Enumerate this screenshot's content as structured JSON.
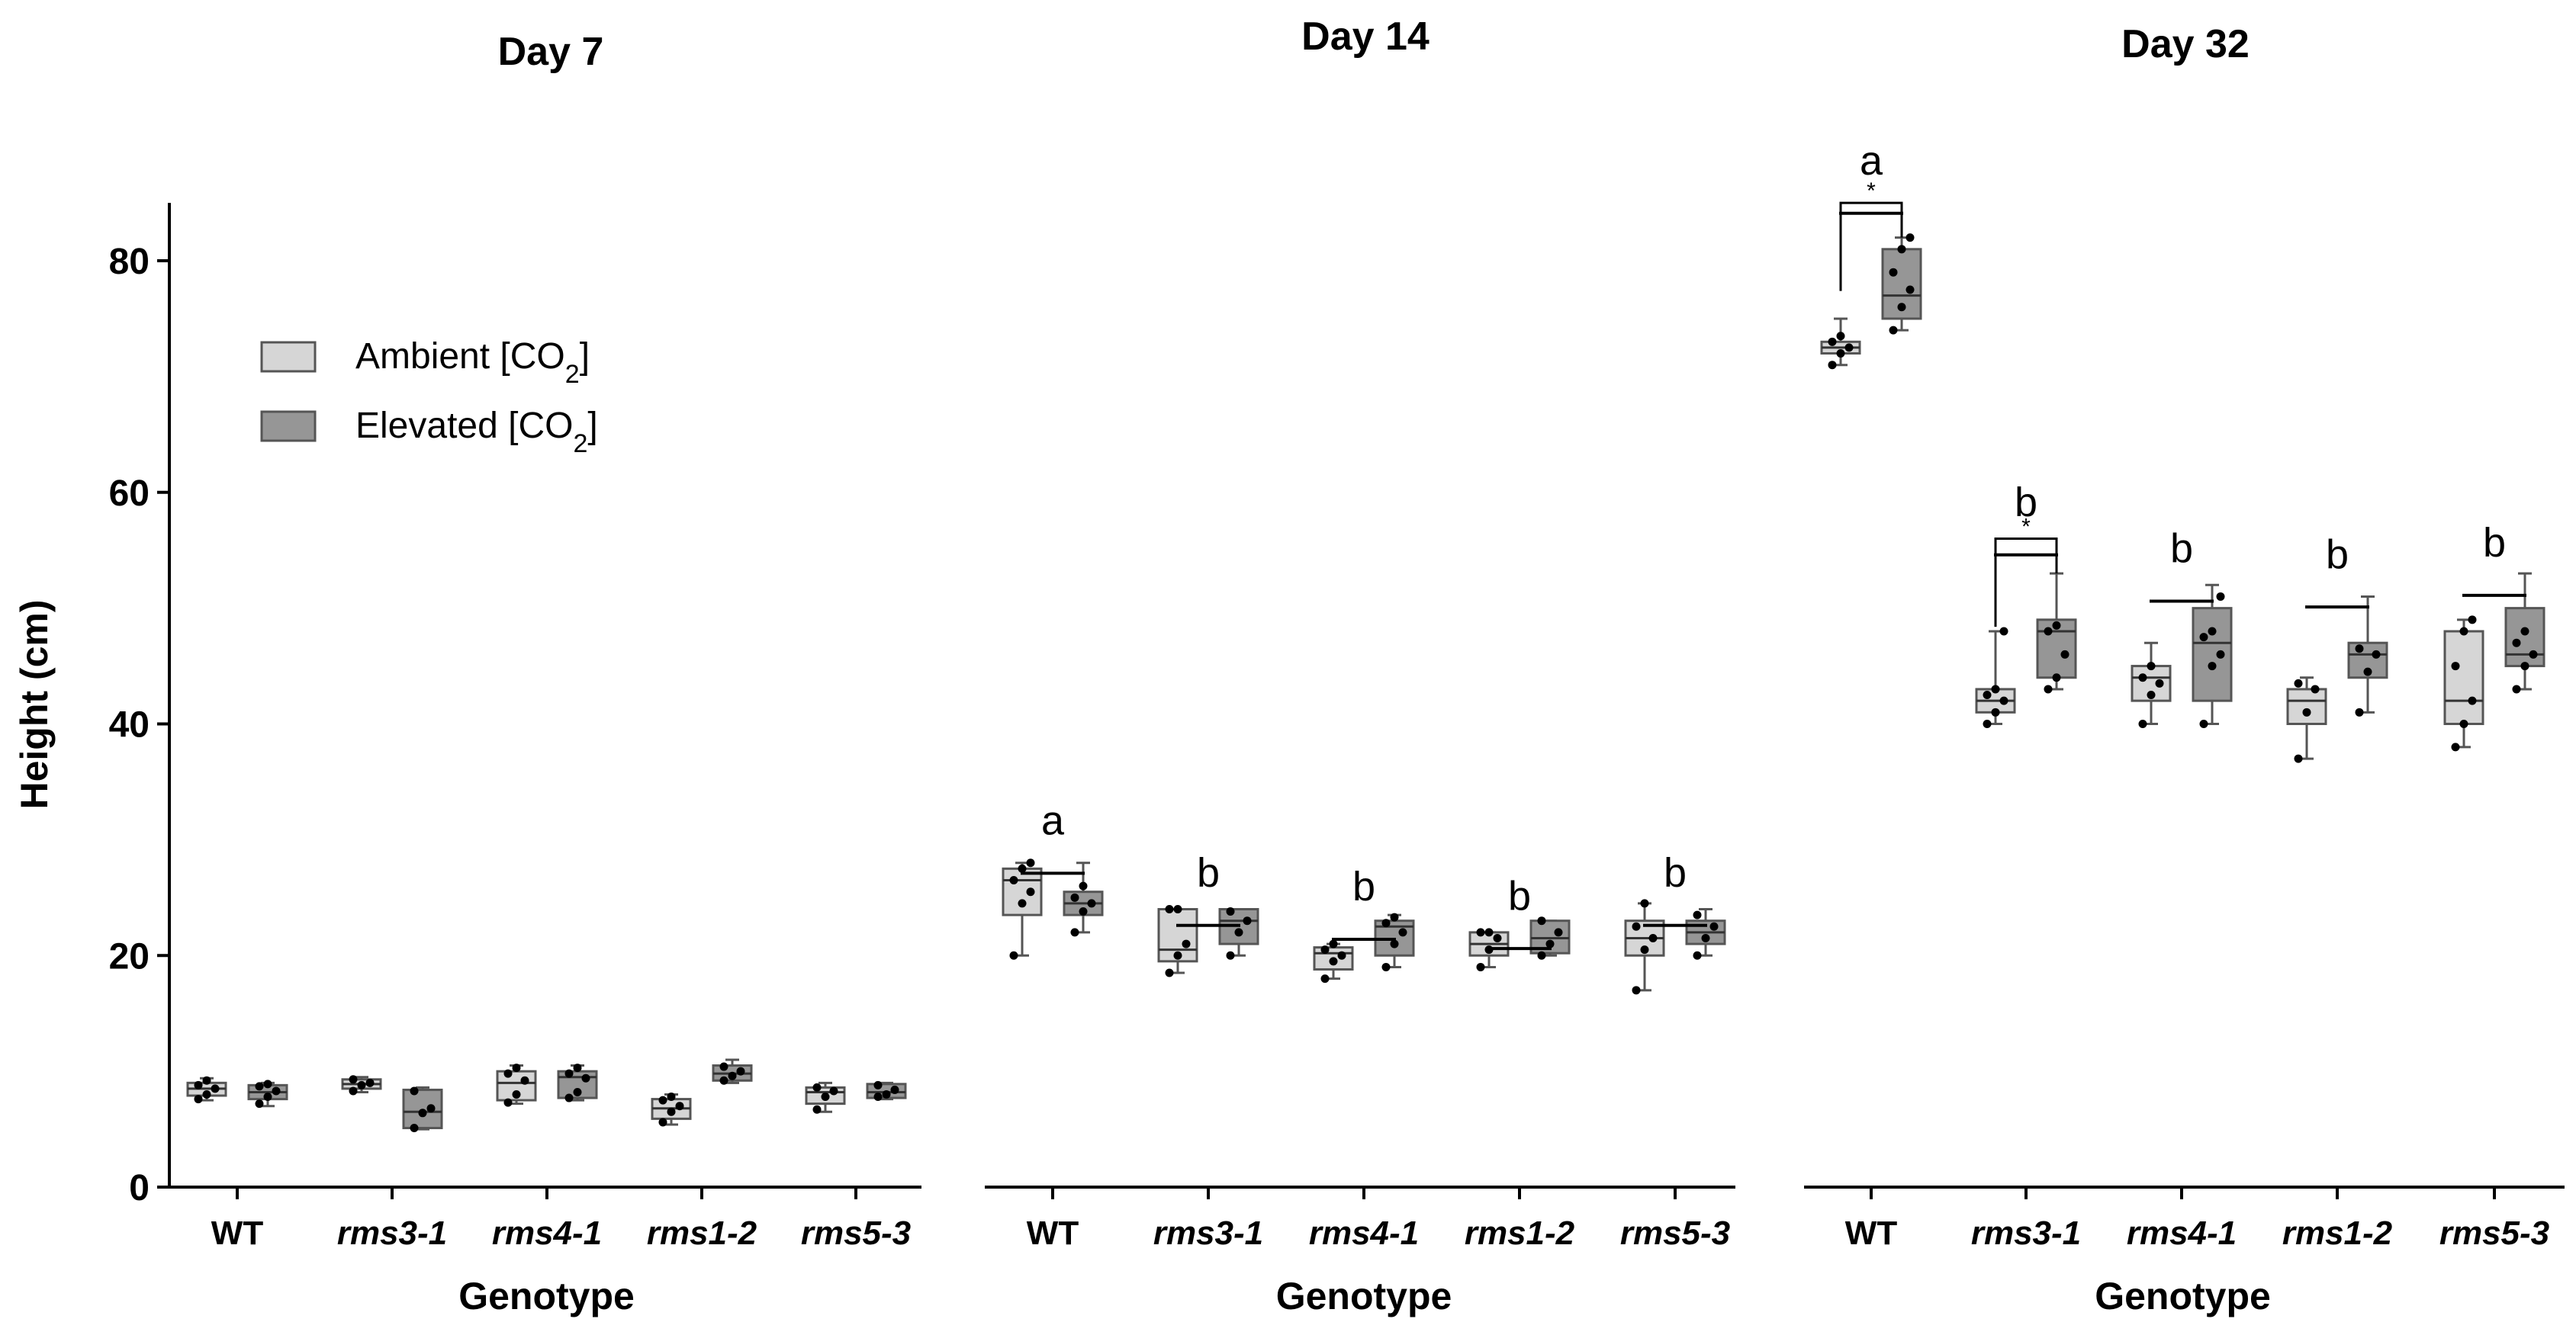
{
  "chart_data": {
    "type": "box",
    "ylabel": "Height (cm)",
    "xlabel": "Genotype",
    "ylim": [
      0,
      85
    ],
    "yticks": [
      0,
      20,
      40,
      60,
      80
    ],
    "categories": [
      "WT",
      "rms3-1",
      "rms4-1",
      "rms1-2",
      "rms5-3"
    ],
    "italic_categories": [
      false,
      true,
      true,
      true,
      true
    ],
    "legend": [
      {
        "label": "Ambient [CO",
        "sub": "2",
        "close": "]",
        "color": "#d6d6d6"
      },
      {
        "label": "Elevated [CO",
        "sub": "2",
        "close": "]",
        "color": "#969696"
      }
    ],
    "panels": [
      {
        "title": "Day 7",
        "groups": [
          {
            "category": "WT",
            "ambient": {
              "min": 7.5,
              "q1": 7.9,
              "median": 8.5,
              "q3": 9.0,
              "max": 9.4,
              "points": [
                7.6,
                8.0,
                8.5,
                8.8,
                9.2
              ]
            },
            "elevated": {
              "min": 7.0,
              "q1": 7.6,
              "median": 8.2,
              "q3": 8.8,
              "max": 9.0,
              "points": [
                7.2,
                7.8,
                8.3,
                8.7,
                8.9
              ]
            }
          },
          {
            "category": "rms3-1",
            "ambient": {
              "min": 8.2,
              "q1": 8.5,
              "median": 8.9,
              "q3": 9.3,
              "max": 9.5,
              "points": [
                8.3,
                8.8,
                9.0,
                9.3
              ]
            },
            "elevated": {
              "min": 5.0,
              "q1": 5.1,
              "median": 6.5,
              "q3": 8.4,
              "max": 8.6,
              "points": [
                5.1,
                6.4,
                6.8,
                8.3
              ]
            }
          },
          {
            "category": "rms4-1",
            "ambient": {
              "min": 7.2,
              "q1": 7.5,
              "median": 9.0,
              "q3": 10.0,
              "max": 10.5,
              "points": [
                7.3,
                8.0,
                9.2,
                9.8,
                10.3
              ]
            },
            "elevated": {
              "min": 7.5,
              "q1": 7.7,
              "median": 9.5,
              "q3": 10.0,
              "max": 10.5,
              "points": [
                7.7,
                8.2,
                9.4,
                9.8,
                10.3
              ]
            }
          },
          {
            "category": "rms1-2",
            "ambient": {
              "min": 5.4,
              "q1": 5.9,
              "median": 6.8,
              "q3": 7.6,
              "max": 8.0,
              "points": [
                5.6,
                6.5,
                7.0,
                7.5,
                7.8
              ]
            },
            "elevated": {
              "min": 9.0,
              "q1": 9.2,
              "median": 9.8,
              "q3": 10.5,
              "max": 11.0,
              "points": [
                9.2,
                9.6,
                10.0,
                10.4
              ]
            }
          },
          {
            "category": "rms5-3",
            "ambient": {
              "min": 6.5,
              "q1": 7.2,
              "median": 8.2,
              "q3": 8.6,
              "max": 9.0,
              "points": [
                6.7,
                7.8,
                8.3,
                8.6
              ]
            },
            "elevated": {
              "min": 7.6,
              "q1": 7.7,
              "median": 8.2,
              "q3": 8.9,
              "max": 9.0,
              "points": [
                7.8,
                8.0,
                8.4,
                8.8
              ]
            }
          }
        ],
        "significance": []
      },
      {
        "title": "Day 14",
        "groups": [
          {
            "category": "WT",
            "ambient": {
              "min": 20.0,
              "q1": 23.5,
              "median": 26.5,
              "q3": 27.5,
              "max": 28.0,
              "points": [
                20.0,
                24.5,
                25.5,
                26.5,
                27.5,
                28.0
              ]
            },
            "elevated": {
              "min": 22.0,
              "q1": 23.5,
              "median": 24.5,
              "q3": 25.5,
              "max": 28.0,
              "points": [
                22.0,
                23.8,
                24.5,
                25.0,
                26.0
              ]
            }
          },
          {
            "category": "rms3-1",
            "ambient": {
              "min": 18.5,
              "q1": 19.5,
              "median": 20.5,
              "q3": 24.0,
              "max": 24.0,
              "points": [
                18.5,
                20.0,
                21.0,
                24.0,
                24.0
              ]
            },
            "elevated": {
              "min": 20.0,
              "q1": 21.0,
              "median": 23.0,
              "q3": 24.0,
              "max": 24.0,
              "points": [
                20.0,
                22.0,
                23.0,
                23.8
              ]
            }
          },
          {
            "category": "rms4-1",
            "ambient": {
              "min": 18.0,
              "q1": 18.8,
              "median": 20.2,
              "q3": 20.7,
              "max": 21.0,
              "points": [
                18.0,
                19.5,
                20.0,
                20.5,
                21.0
              ]
            },
            "elevated": {
              "min": 19.0,
              "q1": 20.0,
              "median": 22.5,
              "q3": 23.0,
              "max": 23.5,
              "points": [
                19.0,
                21.0,
                22.0,
                22.8,
                23.3
              ]
            }
          },
          {
            "category": "rms1-2",
            "ambient": {
              "min": 19.0,
              "q1": 20.0,
              "median": 21.0,
              "q3": 22.0,
              "max": 22.0,
              "points": [
                19.0,
                20.5,
                21.5,
                22.0,
                22.0
              ]
            },
            "elevated": {
              "min": 20.0,
              "q1": 20.2,
              "median": 21.5,
              "q3": 23.0,
              "max": 23.0,
              "points": [
                20.0,
                21.0,
                22.0,
                23.0
              ]
            }
          },
          {
            "category": "rms5-3",
            "ambient": {
              "min": 17.0,
              "q1": 20.0,
              "median": 21.5,
              "q3": 23.0,
              "max": 24.5,
              "points": [
                17.0,
                20.5,
                21.5,
                22.5,
                24.5
              ]
            },
            "elevated": {
              "min": 20.0,
              "q1": 21.0,
              "median": 22.0,
              "q3": 23.0,
              "max": 24.0,
              "points": [
                20.0,
                21.5,
                22.5,
                23.5
              ]
            }
          }
        ],
        "significance": [
          {
            "category": "WT",
            "letter": "a",
            "y": 31.5
          },
          {
            "category": "rms3-1",
            "letter": "b",
            "y": 27.0
          },
          {
            "category": "rms4-1",
            "letter": "b",
            "y": 25.8
          },
          {
            "category": "rms1-2",
            "letter": "b",
            "y": 25.0
          },
          {
            "category": "rms5-3",
            "letter": "b",
            "y": 27.0
          }
        ]
      },
      {
        "title": "Day 32",
        "groups": [
          {
            "category": "WT",
            "ambient": {
              "min": 71.0,
              "q1": 72.0,
              "median": 72.5,
              "q3": 73.0,
              "max": 75.0,
              "points": [
                71.0,
                72.0,
                72.5,
                73.0,
                73.5
              ]
            },
            "elevated": {
              "min": 74.0,
              "q1": 75.0,
              "median": 77.0,
              "q3": 81.0,
              "max": 82.0,
              "points": [
                74.0,
                76.0,
                77.5,
                79.0,
                81.0,
                82.0
              ]
            }
          },
          {
            "category": "rms3-1",
            "ambient": {
              "min": 40.0,
              "q1": 41.0,
              "median": 42.0,
              "q3": 43.0,
              "max": 48.0,
              "points": [
                40.0,
                41.0,
                42.0,
                42.5,
                43.0,
                48.0
              ]
            },
            "elevated": {
              "min": 43.0,
              "q1": 44.0,
              "median": 48.0,
              "q3": 49.0,
              "max": 53.0,
              "points": [
                43.0,
                44.0,
                46.0,
                48.0,
                48.5
              ]
            }
          },
          {
            "category": "rms4-1",
            "ambient": {
              "min": 40.0,
              "q1": 42.0,
              "median": 44.0,
              "q3": 45.0,
              "max": 47.0,
              "points": [
                40.0,
                42.5,
                43.5,
                44.0,
                45.0
              ]
            },
            "elevated": {
              "min": 40.0,
              "q1": 42.0,
              "median": 47.0,
              "q3": 50.0,
              "max": 52.0,
              "points": [
                40.0,
                45.0,
                46.0,
                47.5,
                48.0,
                51.0
              ]
            }
          },
          {
            "category": "rms1-2",
            "ambient": {
              "min": 37.0,
              "q1": 40.0,
              "median": 42.0,
              "q3": 43.0,
              "max": 44.0,
              "points": [
                37.0,
                41.0,
                43.0,
                43.5
              ]
            },
            "elevated": {
              "min": 41.0,
              "q1": 44.0,
              "median": 46.0,
              "q3": 47.0,
              "max": 51.0,
              "points": [
                41.0,
                44.5,
                46.0,
                46.5
              ]
            }
          },
          {
            "category": "rms5-3",
            "ambient": {
              "min": 38.0,
              "q1": 40.0,
              "median": 42.0,
              "q3": 48.0,
              "max": 49.0,
              "points": [
                38.0,
                40.0,
                42.0,
                45.0,
                48.0,
                49.0
              ]
            },
            "elevated": {
              "min": 43.0,
              "q1": 45.0,
              "median": 46.0,
              "q3": 50.0,
              "max": 53.0,
              "points": [
                43.0,
                45.0,
                46.0,
                47.0,
                48.0
              ]
            }
          }
        ],
        "significance": [
          {
            "category": "WT",
            "letter": "a",
            "y": 88.5,
            "bracket_y": 85.0,
            "bracket_drop": 82.0,
            "star": "*"
          },
          {
            "category": "rms3-1",
            "letter": "b",
            "y": 59.0,
            "bracket_y": 56.0,
            "bracket_drop": 53.0,
            "star": "*"
          },
          {
            "category": "rms4-1",
            "letter": "b",
            "y": 55.0
          },
          {
            "category": "rms1-2",
            "letter": "b",
            "y": 54.5
          },
          {
            "category": "rms5-3",
            "letter": "b",
            "y": 55.5
          }
        ]
      }
    ]
  }
}
